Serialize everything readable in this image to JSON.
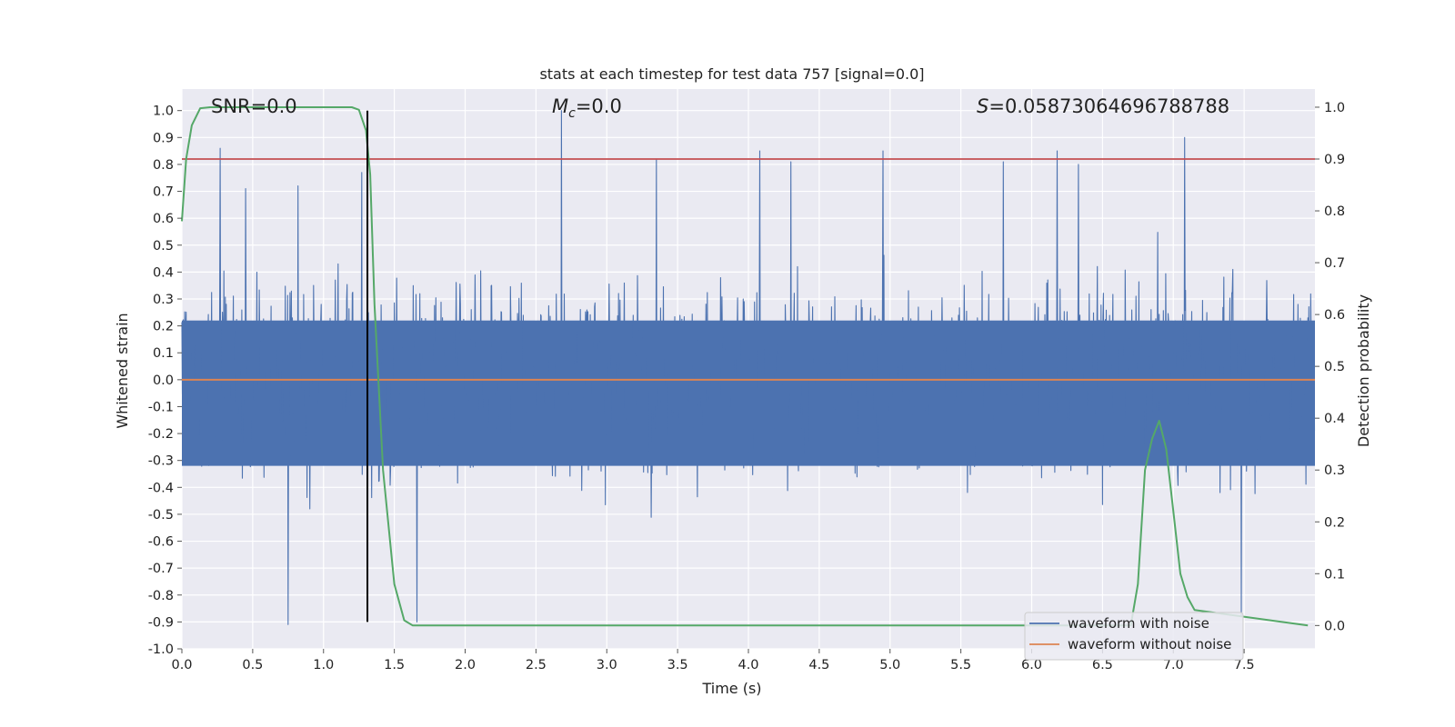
{
  "chart_data": {
    "type": "line",
    "title": "stats at each timestep for test data 757 [signal=0.0]",
    "xlabel": "Time (s)",
    "ylabel": "Whitened strain",
    "ylabel_right": "Detection probability",
    "xlim": [
      0.0,
      8.0
    ],
    "ylim": [
      -1.0,
      1.08
    ],
    "ylim_right": [
      -0.045,
      1.035
    ],
    "x_ticks": [
      "0.0",
      "0.5",
      "1.0",
      "1.5",
      "2.0",
      "2.5",
      "3.0",
      "3.5",
      "4.0",
      "4.5",
      "5.0",
      "5.5",
      "6.0",
      "6.5",
      "7.0",
      "7.5"
    ],
    "y_ticks": [
      "-1.0",
      "-0.9",
      "-0.8",
      "-0.7",
      "-0.6",
      "-0.5",
      "-0.4",
      "-0.3",
      "-0.2",
      "-0.1",
      "0.0",
      "0.1",
      "0.2",
      "0.3",
      "0.4",
      "0.5",
      "0.6",
      "0.7",
      "0.8",
      "0.9",
      "1.0"
    ],
    "y_ticks_right": [
      "0.0",
      "0.1",
      "0.2",
      "0.3",
      "0.4",
      "0.5",
      "0.6",
      "0.7",
      "0.8",
      "0.9",
      "1.0"
    ],
    "annotations": {
      "snr": "SNR=0.0",
      "mc_symbol": "M",
      "mc_sub": "c",
      "mc_value": "=0.0",
      "s_symbol": "S",
      "s_value": "=0.05873064696788788"
    },
    "series": [
      {
        "name": "waveform with noise",
        "color": "#4c72b0",
        "axis": "left",
        "note": "noise-like whitened strain, mostly within -0.45..0.45 with peaks",
        "peaks_x": [
          0.27,
          0.45,
          0.75,
          0.82,
          1.27,
          1.31,
          1.66,
          2.68,
          3.35,
          4.08,
          4.3,
          4.95,
          5.8,
          6.18,
          6.33,
          7.08,
          7.48
        ],
        "peaks_y": [
          0.86,
          0.71,
          -0.91,
          0.72,
          0.77,
          -0.74,
          -0.9,
          1.0,
          0.82,
          0.85,
          0.81,
          0.85,
          0.81,
          0.85,
          0.8,
          0.9,
          -0.88
        ]
      },
      {
        "name": "waveform without noise",
        "color": "#dd8452",
        "axis": "left",
        "x": [
          0.0,
          8.0
        ],
        "y": [
          0.0,
          0.0
        ]
      },
      {
        "name": "",
        "color": "#55a868",
        "axis": "right",
        "x": [
          0.0,
          0.03,
          0.07,
          0.13,
          0.2,
          1.0,
          1.2,
          1.25,
          1.3,
          1.33,
          1.36,
          1.42,
          1.5,
          1.57,
          1.63,
          7.95,
          6.7,
          6.75,
          6.8,
          6.85,
          6.9,
          6.95,
          7.0,
          7.05,
          7.1,
          7.15
        ],
        "y": [
          0.78,
          0.9,
          0.965,
          0.998,
          1.0,
          1.0,
          1.0,
          0.995,
          0.955,
          0.87,
          0.62,
          0.3,
          0.08,
          0.01,
          0.0,
          0.0,
          0.0,
          0.08,
          0.3,
          0.36,
          0.395,
          0.34,
          0.22,
          0.1,
          0.055,
          0.03
        ]
      },
      {
        "name": "",
        "color": "#c44e52",
        "axis": "right",
        "x": [
          0.0,
          8.0
        ],
        "y": [
          0.9,
          0.9
        ]
      }
    ],
    "vline": {
      "x": 1.31,
      "ymin": -0.9,
      "ymax": 1.0,
      "color": "#000000"
    },
    "grid": true,
    "legend_placement": "lower-right",
    "colors": {
      "plot_background": "#eaeaf2",
      "grid": "#ffffff"
    }
  }
}
